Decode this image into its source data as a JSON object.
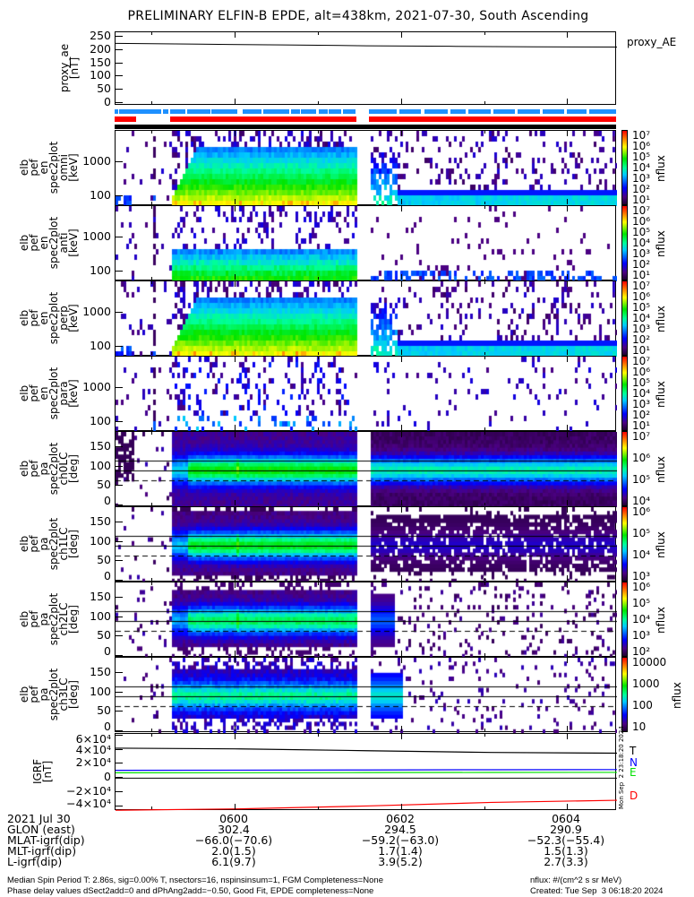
{
  "title": "PRELIMINARY ELFIN-B EPDE, alt=438km, 2021-07-30, South Ascending",
  "proxy_panel": {
    "ylabel": "proxy_ae\n[nT]",
    "legend": "proxy_AE",
    "ticks": [
      "250",
      "200",
      "150",
      "100",
      "50",
      "0"
    ],
    "tick_values": [
      250,
      200,
      150,
      100,
      50,
      0
    ]
  },
  "energy_panels": [
    {
      "ylabel": "elb\npef\nen\nspec2plot\nomni\n[keV]",
      "kind": "omni"
    },
    {
      "ylabel": "elb\npef\nen\nspec2plot\nanti\n[keV]",
      "kind": "anti"
    },
    {
      "ylabel": "elb\npef\nen\nspec2plot\nperp\n[keV]",
      "kind": "perp"
    },
    {
      "ylabel": "elb\npef\nen\nspec2plot\npara\n[keV]",
      "kind": "para"
    }
  ],
  "energy_ticks": [
    "1000",
    "100"
  ],
  "energy_tick_values": [
    1000,
    100
  ],
  "pa_panels": [
    {
      "ylabel": "elb\npef\npa\nspec2plot\nch0LC\n[deg]",
      "kind": "ch0",
      "cbar": [
        "10⁷",
        "10⁶",
        "10⁵",
        "10⁴"
      ]
    },
    {
      "ylabel": "elb\npef\npa\nspec2plot\nch1LC\n[deg]",
      "kind": "ch1",
      "cbar": [
        "10⁶",
        "10⁵",
        "10⁴",
        "10³"
      ]
    },
    {
      "ylabel": "elb\npef\npa\nspec2plot\nch2LC\n[deg]",
      "kind": "ch2",
      "cbar": [
        "10⁶",
        "10⁵",
        "10⁴",
        "10³",
        "10²"
      ]
    },
    {
      "ylabel": "elb\npef\npa\nspec2plot\nch3LC\n[deg]",
      "kind": "ch3",
      "cbar": [
        "10000",
        "1000",
        "100",
        "10"
      ]
    }
  ],
  "pa_ticks": [
    "150",
    "100",
    "50",
    "0"
  ],
  "pa_tick_values": [
    150,
    100,
    50,
    0
  ],
  "energy_cbar": [
    "10⁷",
    "10⁶",
    "10⁵",
    "10⁴",
    "10³",
    "10²",
    "10¹"
  ],
  "cbar_unit": "nflux",
  "igrf_panel": {
    "ylabel": "IGRF\n[nT]",
    "ticks": [
      "6×10⁴",
      "4×10⁴",
      "2×10⁴",
      "0",
      "−2×10⁴",
      "−4×10⁴"
    ],
    "tick_values": [
      60000,
      40000,
      20000,
      0,
      -20000,
      -40000
    ],
    "legend": [
      {
        "label": "T",
        "color": "#000000"
      },
      {
        "label": "N",
        "color": "#0000ff"
      },
      {
        "label": "E",
        "color": "#00e000"
      },
      {
        "label": "D",
        "color": "#ff0000"
      }
    ],
    "stamp": "Mon Sep  2 23:18:20 2024"
  },
  "ephemeris": {
    "row_labels": [
      "2021 Jul 30",
      "GLON (east)",
      "MLAT-igrf(dip)",
      "MLT-igrf(dip)",
      "L-igrf(dip)"
    ],
    "columns": [
      {
        "values": [
          "0600",
          "302.4",
          "−66.0(−70.6)",
          "2.0(1.5)",
          "6.1(9.7)"
        ]
      },
      {
        "values": [
          "0602",
          "294.5",
          "−59.2(−63.0)",
          "1.7(1.4)",
          "3.9(5.2)"
        ]
      },
      {
        "values": [
          "0604",
          "290.9",
          "−52.3(−55.4)",
          "1.5(1.3)",
          "2.7(3.3)"
        ]
      }
    ]
  },
  "footer": {
    "line1": "Median Spin Period T: 2.86s, sig=0.00% T, nsectors=16, nspinsinsum=1, FGM Completeness=None",
    "line2": "Phase delay values dSect2add=0 and dPhAng2add=−0.50, Good Fit, EPDE completeness=None",
    "units": "nflux: #/(cm^2 s sr MeV)",
    "created": "Created: Tue Sep  3 06:18:20 2024"
  },
  "chart_data": [
    {
      "type": "line",
      "title": "proxy_AE",
      "ylabel": "proxy_ae [nT]",
      "ylim": [
        0,
        260
      ],
      "x": [
        "0559",
        "0600",
        "0601",
        "0602",
        "0603",
        "0604",
        "0605"
      ],
      "values": [
        225,
        222,
        219,
        216,
        214,
        212,
        211
      ]
    },
    {
      "type": "heatmap",
      "title": "elb pef en spec2plot (omni/anti/perp/para)",
      "ylabel": "Energy [keV]",
      "ylim": [
        50,
        8000
      ],
      "zlabel": "nflux",
      "zlim": [
        10,
        10000000
      ]
    },
    {
      "type": "heatmap",
      "title": "elb pef pa spec2plot ch0LC–ch3LC",
      "ylabel": "Pitch angle [deg]",
      "ylim": [
        0,
        180
      ],
      "reference_lines_deg": [
        90,
        115,
        65
      ]
    },
    {
      "type": "line",
      "title": "IGRF",
      "ylabel": "IGRF [nT]",
      "ylim": [
        -46000,
        62000
      ],
      "x": [
        "0559",
        "0600",
        "0602",
        "0604",
        "0605"
      ],
      "series": [
        {
          "name": "T",
          "values": [
            42000,
            41000,
            38500,
            36000,
            35000
          ]
        },
        {
          "name": "N",
          "values": [
            11000,
            11200,
            11500,
            11800,
            12000
          ]
        },
        {
          "name": "E",
          "values": [
            7500,
            7600,
            7800,
            8000,
            8100
          ]
        },
        {
          "name": "D",
          "values": [
            -45000,
            -43000,
            -39000,
            -34000,
            -31000
          ]
        }
      ]
    }
  ]
}
